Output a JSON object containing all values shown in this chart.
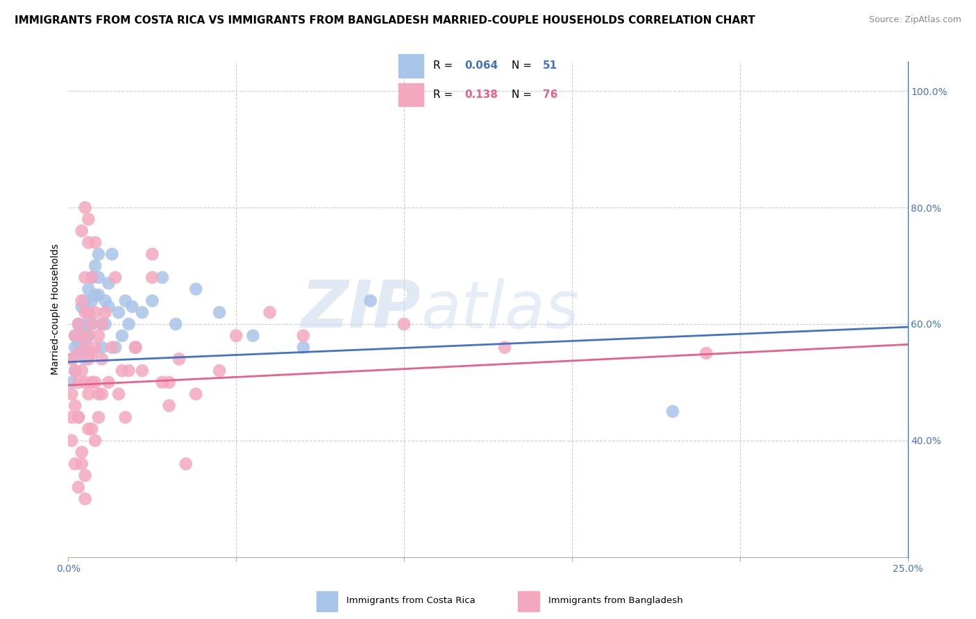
{
  "title": "IMMIGRANTS FROM COSTA RICA VS IMMIGRANTS FROM BANGLADESH MARRIED-COUPLE HOUSEHOLDS CORRELATION CHART",
  "source": "Source: ZipAtlas.com",
  "ylabel": "Married-couple Households",
  "cr_R": 0.064,
  "cr_N": 51,
  "bd_R": 0.138,
  "bd_N": 76,
  "watermark_zip": "ZIP",
  "watermark_atlas": "atlas",
  "cr_color": "#a8c4e8",
  "bd_color": "#f4a8c0",
  "cr_line_color": "#4472c4",
  "bd_line_color": "#e8608a",
  "xlim": [
    0.0,
    0.25
  ],
  "ylim": [
    0.2,
    1.05
  ],
  "right_yticks": [
    0.4,
    0.6,
    0.8,
    1.0
  ],
  "right_yticklabels": [
    "40.0%",
    "60.0%",
    "80.0%",
    "100.0%"
  ],
  "xtick_positions": [
    0.0,
    0.05,
    0.1,
    0.15,
    0.2,
    0.25
  ],
  "cr_scatter_x": [
    0.001,
    0.001,
    0.002,
    0.002,
    0.002,
    0.003,
    0.003,
    0.003,
    0.004,
    0.004,
    0.004,
    0.005,
    0.005,
    0.005,
    0.005,
    0.006,
    0.006,
    0.006,
    0.006,
    0.007,
    0.007,
    0.007,
    0.008,
    0.008,
    0.009,
    0.009,
    0.009,
    0.01,
    0.01,
    0.011,
    0.011,
    0.012,
    0.012,
    0.013,
    0.014,
    0.015,
    0.016,
    0.017,
    0.018,
    0.019,
    0.02,
    0.022,
    0.025,
    0.028,
    0.032,
    0.038,
    0.045,
    0.055,
    0.07,
    0.09,
    0.18
  ],
  "cr_scatter_y": [
    0.54,
    0.5,
    0.56,
    0.58,
    0.52,
    0.6,
    0.55,
    0.57,
    0.63,
    0.59,
    0.56,
    0.64,
    0.6,
    0.57,
    0.54,
    0.66,
    0.62,
    0.58,
    0.55,
    0.68,
    0.64,
    0.6,
    0.7,
    0.65,
    0.72,
    0.68,
    0.65,
    0.6,
    0.56,
    0.64,
    0.6,
    0.67,
    0.63,
    0.72,
    0.56,
    0.62,
    0.58,
    0.64,
    0.6,
    0.63,
    0.56,
    0.62,
    0.64,
    0.68,
    0.6,
    0.66,
    0.62,
    0.58,
    0.56,
    0.64,
    0.45
  ],
  "bd_scatter_x": [
    0.001,
    0.001,
    0.001,
    0.002,
    0.002,
    0.002,
    0.003,
    0.003,
    0.003,
    0.003,
    0.004,
    0.004,
    0.004,
    0.005,
    0.005,
    0.005,
    0.005,
    0.006,
    0.006,
    0.006,
    0.006,
    0.007,
    0.007,
    0.007,
    0.008,
    0.008,
    0.008,
    0.009,
    0.009,
    0.01,
    0.01,
    0.011,
    0.012,
    0.013,
    0.014,
    0.015,
    0.016,
    0.017,
    0.018,
    0.02,
    0.022,
    0.025,
    0.028,
    0.03,
    0.033,
    0.038,
    0.045,
    0.05,
    0.06,
    0.07,
    0.001,
    0.002,
    0.003,
    0.004,
    0.005,
    0.006,
    0.007,
    0.008,
    0.009,
    0.01,
    0.004,
    0.005,
    0.006,
    0.007,
    0.008,
    0.025,
    0.03,
    0.035,
    0.1,
    0.13,
    0.003,
    0.004,
    0.005,
    0.006,
    0.02,
    0.19
  ],
  "bd_scatter_y": [
    0.54,
    0.48,
    0.44,
    0.58,
    0.52,
    0.46,
    0.6,
    0.55,
    0.5,
    0.44,
    0.64,
    0.58,
    0.52,
    0.68,
    0.62,
    0.56,
    0.5,
    0.62,
    0.58,
    0.54,
    0.78,
    0.6,
    0.55,
    0.5,
    0.62,
    0.56,
    0.5,
    0.58,
    0.48,
    0.6,
    0.54,
    0.62,
    0.5,
    0.56,
    0.68,
    0.48,
    0.52,
    0.44,
    0.52,
    0.56,
    0.52,
    0.72,
    0.5,
    0.46,
    0.54,
    0.48,
    0.52,
    0.58,
    0.62,
    0.58,
    0.4,
    0.36,
    0.44,
    0.38,
    0.34,
    0.48,
    0.42,
    0.4,
    0.44,
    0.48,
    0.76,
    0.8,
    0.74,
    0.68,
    0.74,
    0.68,
    0.5,
    0.36,
    0.6,
    0.56,
    0.32,
    0.36,
    0.3,
    0.42,
    0.56,
    0.55
  ],
  "title_fontsize": 11,
  "source_fontsize": 9,
  "axis_label_fontsize": 10,
  "tick_fontsize": 10,
  "background_color": "#ffffff",
  "grid_color": "#cccccc"
}
